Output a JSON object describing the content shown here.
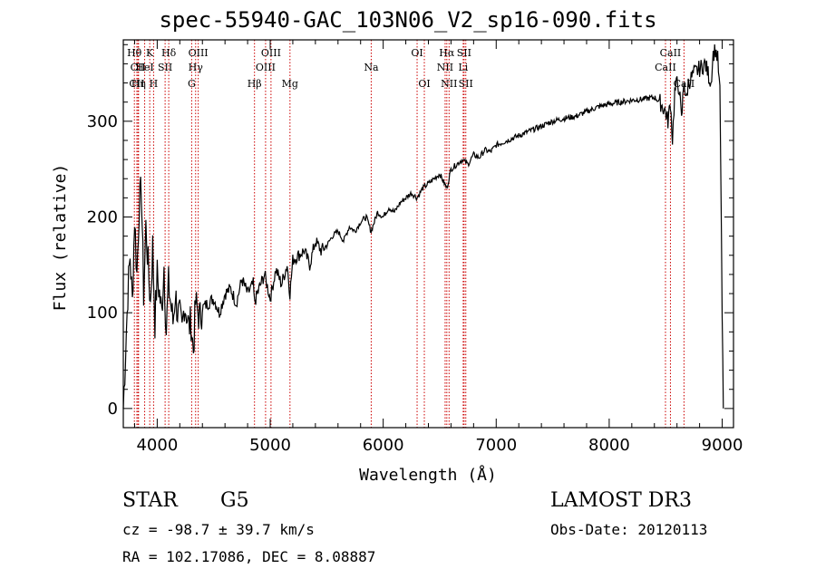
{
  "chart_data": {
    "type": "line",
    "title": "spec-55940-GAC_103N06_V2_sp16-090.fits",
    "xlabel": "Wavelength (Å)",
    "ylabel": "Flux (relative)",
    "xlim": [
      3700,
      9100
    ],
    "ylim": [
      -20,
      385
    ],
    "xticks": [
      4000,
      5000,
      6000,
      7000,
      8000,
      9000
    ],
    "yticks": [
      0,
      100,
      200,
      300
    ],
    "grid": false,
    "series": [
      {
        "name": "flux",
        "x": [
          3700,
          3720,
          3740,
          3760,
          3780,
          3800,
          3820,
          3840,
          3860,
          3880,
          3900,
          3920,
          3940,
          3960,
          3980,
          4000,
          4020,
          4040,
          4060,
          4080,
          4100,
          4120,
          4140,
          4160,
          4180,
          4200,
          4220,
          4240,
          4260,
          4280,
          4300,
          4320,
          4340,
          4360,
          4380,
          4400,
          4450,
          4500,
          4550,
          4600,
          4650,
          4700,
          4750,
          4800,
          4850,
          4861,
          4900,
          4950,
          5000,
          5050,
          5100,
          5150,
          5175,
          5200,
          5250,
          5300,
          5350,
          5400,
          5450,
          5500,
          5550,
          5600,
          5650,
          5700,
          5750,
          5800,
          5850,
          5893,
          5950,
          6000,
          6050,
          6100,
          6150,
          6200,
          6250,
          6300,
          6350,
          6400,
          6450,
          6500,
          6563,
          6600,
          6650,
          6700,
          6750,
          6800,
          6850,
          6900,
          6950,
          7000,
          7100,
          7200,
          7300,
          7400,
          7500,
          7600,
          7700,
          7800,
          7900,
          8000,
          8100,
          8200,
          8300,
          8400,
          8450,
          8498,
          8520,
          8542,
          8560,
          8580,
          8600,
          8620,
          8640,
          8662,
          8680,
          8700,
          8750,
          8800,
          8850,
          8900,
          8920,
          8940,
          8960,
          8980,
          9000,
          9010
        ],
        "values": [
          0,
          60,
          120,
          160,
          110,
          200,
          140,
          210,
          230,
          120,
          190,
          150,
          110,
          170,
          90,
          140,
          120,
          100,
          150,
          80,
          130,
          110,
          90,
          120,
          100,
          95,
          80,
          110,
          100,
          85,
          90,
          60,
          110,
          100,
          95,
          105,
          110,
          115,
          100,
          120,
          125,
          110,
          135,
          120,
          130,
          110,
          125,
          140,
          115,
          145,
          130,
          150,
          120,
          155,
          160,
          165,
          150,
          175,
          165,
          170,
          180,
          185,
          175,
          190,
          185,
          195,
          200,
          185,
          205,
          200,
          210,
          205,
          215,
          220,
          225,
          220,
          230,
          235,
          240,
          245,
          230,
          250,
          255,
          260,
          255,
          265,
          262,
          270,
          268,
          275,
          280,
          285,
          290,
          295,
          300,
          303,
          305,
          310,
          315,
          318,
          320,
          322,
          323,
          325,
          320,
          310,
          300,
          320,
          280,
          330,
          340,
          335,
          300,
          345,
          320,
          340,
          350,
          355,
          360,
          340,
          370,
          375,
          365,
          330,
          100,
          0
        ]
      }
    ],
    "lines": [
      {
        "label": "Hθ",
        "wl": 3798
      },
      {
        "label": "CII",
        "wl": 3820
      },
      {
        "label": "CII",
        "wl": 3830
      },
      {
        "label": "Hη",
        "wl": 3835
      },
      {
        "label": "HeI",
        "wl": 3889
      },
      {
        "label": "K",
        "wl": 3934
      },
      {
        "label": "H",
        "wl": 3968
      },
      {
        "label": "SII",
        "wl": 4070
      },
      {
        "label": "Hδ",
        "wl": 4102
      },
      {
        "label": "Hγ",
        "wl": 4340
      },
      {
        "label": "OIII",
        "wl": 4363
      },
      {
        "label": "G",
        "wl": 4305
      },
      {
        "label": "Hβ",
        "wl": 4861
      },
      {
        "label": "OIII",
        "wl": 4959
      },
      {
        "label": "OIII",
        "wl": 5007
      },
      {
        "label": "Mg",
        "wl": 5175
      },
      {
        "label": "Na",
        "wl": 5894
      },
      {
        "label": "OI",
        "wl": 6300
      },
      {
        "label": "OI",
        "wl": 6364
      },
      {
        "label": "NII",
        "wl": 6548
      },
      {
        "label": "Hα",
        "wl": 6563
      },
      {
        "label": "NII",
        "wl": 6583
      },
      {
        "label": "Li",
        "wl": 6708
      },
      {
        "label": "SII",
        "wl": 6716
      },
      {
        "label": "SII",
        "wl": 6731
      },
      {
        "label": "CaII",
        "wl": 8498
      },
      {
        "label": "CaII",
        "wl": 8542
      },
      {
        "label": "CaII",
        "wl": 8662
      }
    ],
    "line_labels": [
      {
        "text": "Hθ",
        "wl": 3798,
        "row": 0
      },
      {
        "text": "K",
        "wl": 3934,
        "row": 0
      },
      {
        "text": "Hδ",
        "wl": 4102,
        "row": 0
      },
      {
        "text": "OIII",
        "wl": 4363,
        "row": 0
      },
      {
        "text": "OIII",
        "wl": 5007,
        "row": 0
      },
      {
        "text": "OI",
        "wl": 6300,
        "row": 0
      },
      {
        "text": "Hα",
        "wl": 6563,
        "row": 0
      },
      {
        "text": "SII",
        "wl": 6716,
        "row": 0
      },
      {
        "text": "CaII",
        "wl": 8542,
        "row": 0
      },
      {
        "text": "CII",
        "wl": 3830,
        "row": 1
      },
      {
        "text": "HeI",
        "wl": 3889,
        "row": 1
      },
      {
        "text": "SII",
        "wl": 4070,
        "row": 1
      },
      {
        "text": "Hγ",
        "wl": 4340,
        "row": 1
      },
      {
        "text": "OIII",
        "wl": 4959,
        "row": 1
      },
      {
        "text": "Na",
        "wl": 5894,
        "row": 1
      },
      {
        "text": "NII",
        "wl": 6548,
        "row": 1
      },
      {
        "text": "Li",
        "wl": 6708,
        "row": 1
      },
      {
        "text": "CaII",
        "wl": 8498,
        "row": 1
      },
      {
        "text": "CII",
        "wl": 3820,
        "row": 2
      },
      {
        "text": "Hη",
        "wl": 3835,
        "row": 2
      },
      {
        "text": "H",
        "wl": 3968,
        "row": 2
      },
      {
        "text": "G",
        "wl": 4305,
        "row": 2
      },
      {
        "text": "Hβ",
        "wl": 4861,
        "row": 2
      },
      {
        "text": "Mg",
        "wl": 5175,
        "row": 2
      },
      {
        "text": "OI",
        "wl": 6364,
        "row": 2
      },
      {
        "text": "NII",
        "wl": 6583,
        "row": 2
      },
      {
        "text": "SII",
        "wl": 6731,
        "row": 2
      },
      {
        "text": "CaII",
        "wl": 8662,
        "row": 2
      }
    ]
  },
  "info": {
    "object_type": "STAR",
    "subclass": "G5",
    "survey": "LAMOST DR3",
    "cz": "cz = -98.7 ± 39.7 km/s",
    "obs_date": "Obs-Date: 20120113",
    "radec": "RA = 102.17086, DEC =   8.08887"
  },
  "colors": {
    "spectrum": "#000000",
    "line_marker": "#cc0000",
    "axes": "#000000"
  }
}
